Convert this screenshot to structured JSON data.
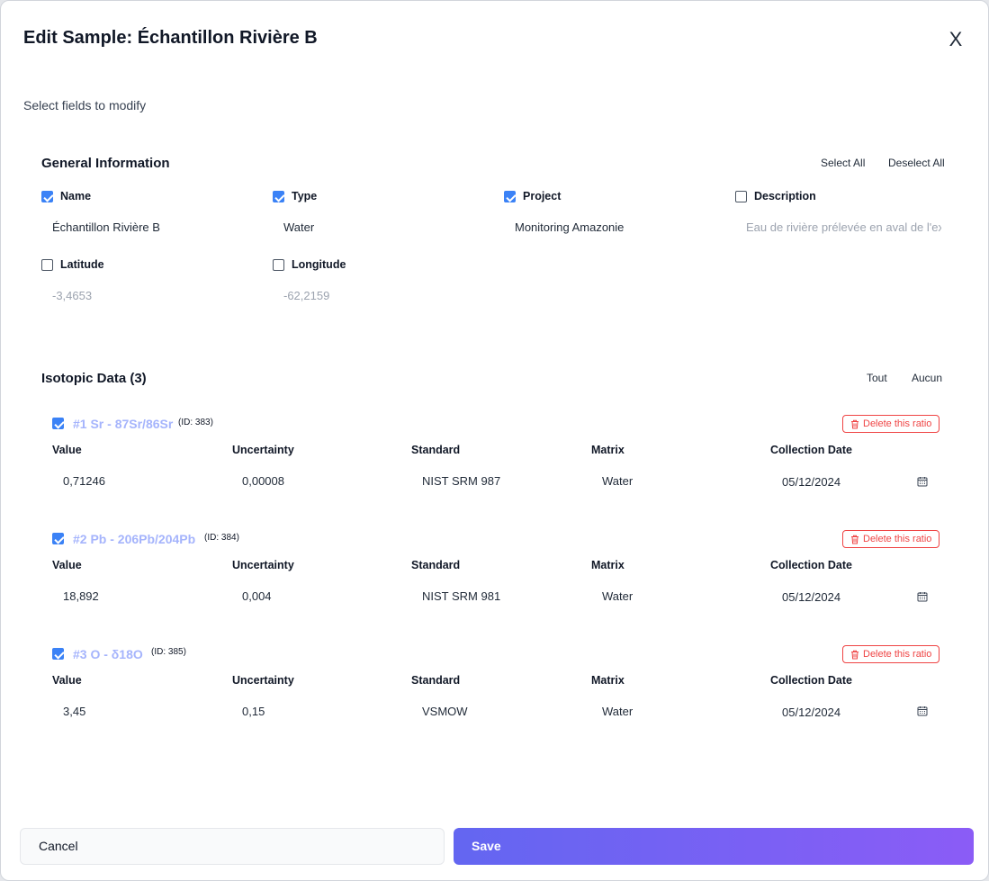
{
  "dialog": {
    "title": "Edit Sample: Échantillon Rivière B",
    "close_label": "X",
    "subtitle": "Select fields to modify"
  },
  "general": {
    "title": "General Information",
    "select_all": "Select All",
    "deselect_all": "Deselect All",
    "fields": [
      {
        "label": "Name",
        "value": "Échantillon Rivière B",
        "checked": true
      },
      {
        "label": "Type",
        "value": "Water",
        "checked": true
      },
      {
        "label": "Project",
        "value": "Monitoring Amazonie",
        "checked": true
      },
      {
        "label": "Description",
        "value": "Eau de rivière prélevée en aval de l'ex",
        "checked": false
      },
      {
        "label": "Latitude",
        "value": "-3,4653",
        "checked": false
      },
      {
        "label": "Longitude",
        "value": "-62,2159",
        "checked": false
      }
    ]
  },
  "isotopic": {
    "title": "Isotopic Data (3)",
    "select_all": "Tout",
    "deselect_all": "Aucun",
    "delete_label": "Delete this ratio",
    "columns": [
      "Value",
      "Uncertainty",
      "Standard",
      "Matrix",
      "Collection Date"
    ],
    "ratios": [
      {
        "title": "#1 Sr - 87Sr/86Sr",
        "id": "(ID: 383)",
        "checked": true,
        "values": [
          "0,71246",
          "0,00008",
          "NIST SRM 987",
          "Water",
          "05/12/2024"
        ]
      },
      {
        "title": "#2 Pb - 206Pb/204Pb",
        "id": "(ID: 384)",
        "checked": true,
        "values": [
          "18,892",
          "0,004",
          "NIST SRM 981",
          "Water",
          "05/12/2024"
        ]
      },
      {
        "title": "#3 O - δ18O",
        "id": "(ID: 385)",
        "checked": true,
        "values": [
          "3,45",
          "0,15",
          "VSMOW",
          "Water",
          "05/12/2024"
        ]
      }
    ]
  },
  "footer": {
    "cancel_label": "Cancel",
    "save_label": "Save"
  },
  "colors": {
    "accent": "#6366f1",
    "accent_end": "#8b5cf6",
    "checkbox": "#3b82f6",
    "danger": "#ef4444",
    "ratio_title": "#a5b4fc"
  }
}
